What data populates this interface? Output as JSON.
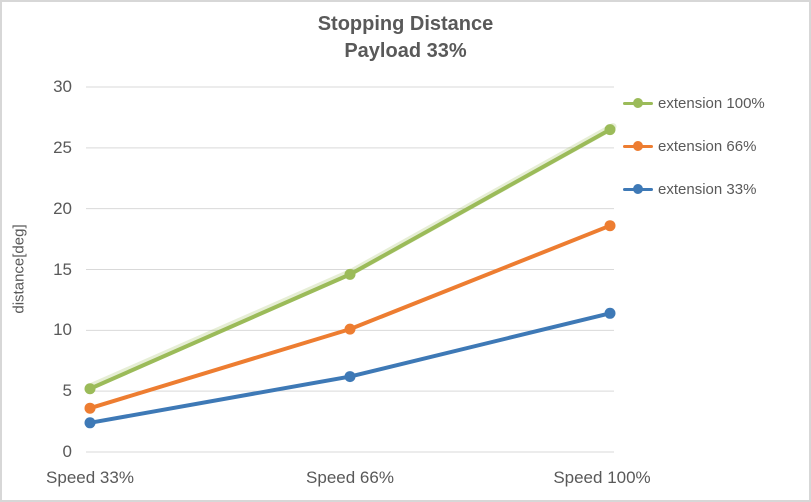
{
  "chart_data": {
    "type": "line",
    "title": "Stopping Distance",
    "subtitle": "Payload 33%",
    "categories": [
      "Speed 33%",
      "Speed 66%",
      "Speed 100%"
    ],
    "series": [
      {
        "name": "extension 100%",
        "color": "#9BBB59",
        "values": [
          5.2,
          14.6,
          26.5
        ]
      },
      {
        "name": "extension 66%",
        "color": "#ED7D31",
        "values": [
          3.6,
          10.1,
          18.6
        ]
      },
      {
        "name": "extension 33%",
        "color": "#3E79B6",
        "values": [
          2.4,
          6.2,
          11.4
        ]
      }
    ],
    "xlabel": "",
    "ylabel": "distance[deg]",
    "ylim": [
      0,
      30
    ],
    "yticks": [
      0,
      5,
      10,
      15,
      20,
      25,
      30
    ],
    "grid": true,
    "legend_position": "right",
    "colors": {
      "text": "#595959",
      "gridline": "#D9D9D9",
      "border": "#D7D7D7"
    }
  }
}
